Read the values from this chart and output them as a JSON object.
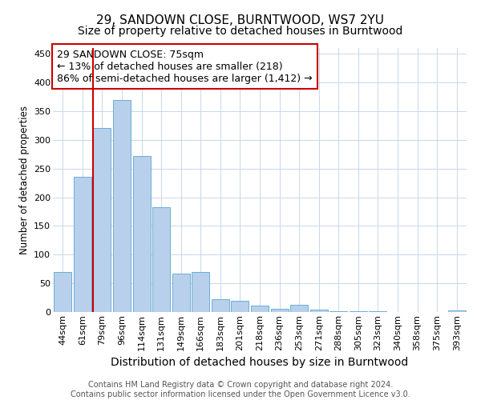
{
  "title": "29, SANDOWN CLOSE, BURNTWOOD, WS7 2YU",
  "subtitle": "Size of property relative to detached houses in Burntwood",
  "xlabel": "Distribution of detached houses by size in Burntwood",
  "ylabel": "Number of detached properties",
  "footer_line1": "Contains HM Land Registry data © Crown copyright and database right 2024.",
  "footer_line2": "Contains public sector information licensed under the Open Government Licence v3.0.",
  "annotation_line1": "29 SANDOWN CLOSE: 75sqm",
  "annotation_line2": "← 13% of detached houses are smaller (218)",
  "annotation_line3": "86% of semi-detached houses are larger (1,412) →",
  "bar_labels": [
    "44sqm",
    "61sqm",
    "79sqm",
    "96sqm",
    "114sqm",
    "131sqm",
    "149sqm",
    "166sqm",
    "183sqm",
    "201sqm",
    "218sqm",
    "236sqm",
    "253sqm",
    "271sqm",
    "288sqm",
    "305sqm",
    "323sqm",
    "340sqm",
    "358sqm",
    "375sqm",
    "393sqm"
  ],
  "bar_values": [
    70,
    235,
    320,
    370,
    272,
    183,
    67,
    70,
    23,
    20,
    11,
    6,
    12,
    4,
    2,
    2,
    2,
    0,
    0,
    0,
    3
  ],
  "bar_color": "#b8d0eb",
  "bar_edge_color": "#6aaed6",
  "vline_color": "#cc0000",
  "vline_bin_index": 2,
  "annotation_box_color": "#cc0000",
  "annotation_bg": "#ffffff",
  "grid_color": "#c8d8ea",
  "ylim": [
    0,
    460
  ],
  "title_fontsize": 11,
  "subtitle_fontsize": 10,
  "xlabel_fontsize": 10,
  "ylabel_fontsize": 8.5,
  "tick_fontsize": 8,
  "annotation_fontsize": 9,
  "footer_fontsize": 7
}
